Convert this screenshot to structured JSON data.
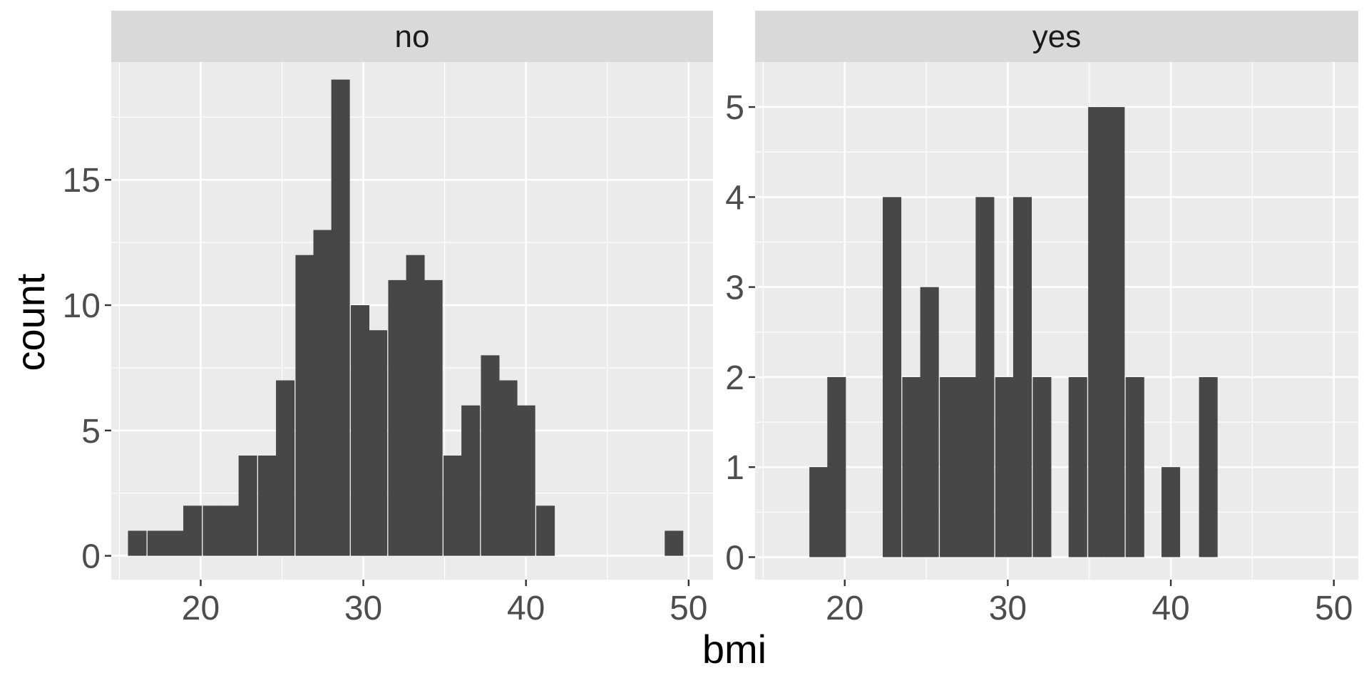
{
  "chart_data": {
    "type": "bar",
    "xlabel": "bmi",
    "ylabel": "count",
    "bin_width": 1.14,
    "xlim": [
      14.5,
      51.5
    ],
    "x_ticks": [
      20,
      30,
      40,
      50
    ],
    "grid": true,
    "panels": [
      {
        "strip_label": "no",
        "ylim": [
          -0.95,
          19.7
        ],
        "y_ticks": [
          0,
          5,
          10,
          15
        ],
        "bins": [
          {
            "x": 16.1,
            "count": 1
          },
          {
            "x": 17.3,
            "count": 1
          },
          {
            "x": 18.4,
            "count": 1
          },
          {
            "x": 19.5,
            "count": 2
          },
          {
            "x": 20.7,
            "count": 2
          },
          {
            "x": 21.8,
            "count": 2
          },
          {
            "x": 22.9,
            "count": 4
          },
          {
            "x": 24.1,
            "count": 4
          },
          {
            "x": 25.2,
            "count": 7
          },
          {
            "x": 26.4,
            "count": 12
          },
          {
            "x": 27.5,
            "count": 13
          },
          {
            "x": 28.6,
            "count": 19
          },
          {
            "x": 29.8,
            "count": 10
          },
          {
            "x": 30.9,
            "count": 9
          },
          {
            "x": 32.1,
            "count": 11
          },
          {
            "x": 33.2,
            "count": 12
          },
          {
            "x": 34.3,
            "count": 11
          },
          {
            "x": 35.5,
            "count": 4
          },
          {
            "x": 36.6,
            "count": 6
          },
          {
            "x": 37.8,
            "count": 8
          },
          {
            "x": 38.9,
            "count": 7
          },
          {
            "x": 40.0,
            "count": 6
          },
          {
            "x": 41.2,
            "count": 2
          },
          {
            "x": 42.3,
            "count": 0
          },
          {
            "x": 43.5,
            "count": 0
          },
          {
            "x": 44.6,
            "count": 0
          },
          {
            "x": 45.7,
            "count": 0
          },
          {
            "x": 46.9,
            "count": 0
          },
          {
            "x": 48.0,
            "count": 0
          },
          {
            "x": 49.1,
            "count": 1
          }
        ]
      },
      {
        "strip_label": "yes",
        "ylim": [
          -0.25,
          5.5
        ],
        "y_ticks": [
          0,
          1,
          2,
          3,
          4,
          5
        ],
        "bins": [
          {
            "x": 18.4,
            "count": 1
          },
          {
            "x": 19.5,
            "count": 2
          },
          {
            "x": 20.7,
            "count": 0
          },
          {
            "x": 21.8,
            "count": 0
          },
          {
            "x": 22.9,
            "count": 4
          },
          {
            "x": 24.1,
            "count": 2
          },
          {
            "x": 25.2,
            "count": 3
          },
          {
            "x": 26.4,
            "count": 2
          },
          {
            "x": 27.5,
            "count": 2
          },
          {
            "x": 28.6,
            "count": 4
          },
          {
            "x": 29.8,
            "count": 2
          },
          {
            "x": 30.9,
            "count": 4
          },
          {
            "x": 32.1,
            "count": 2
          },
          {
            "x": 33.2,
            "count": 0
          },
          {
            "x": 34.3,
            "count": 2
          },
          {
            "x": 35.5,
            "count": 5
          },
          {
            "x": 36.6,
            "count": 5
          },
          {
            "x": 37.8,
            "count": 2
          },
          {
            "x": 38.9,
            "count": 0
          },
          {
            "x": 40.0,
            "count": 1
          },
          {
            "x": 41.2,
            "count": 0
          },
          {
            "x": 42.3,
            "count": 2
          }
        ]
      }
    ]
  },
  "colors": {
    "panel_background": "#EBEBEB",
    "strip_background": "#D9D9D9",
    "grid_major": "#FFFFFF",
    "bar_fill": "#474747",
    "axis_text": "#4D4D4D",
    "tick": "#333333",
    "title_text": "#000000",
    "strip_text": "#1A1A1A"
  }
}
